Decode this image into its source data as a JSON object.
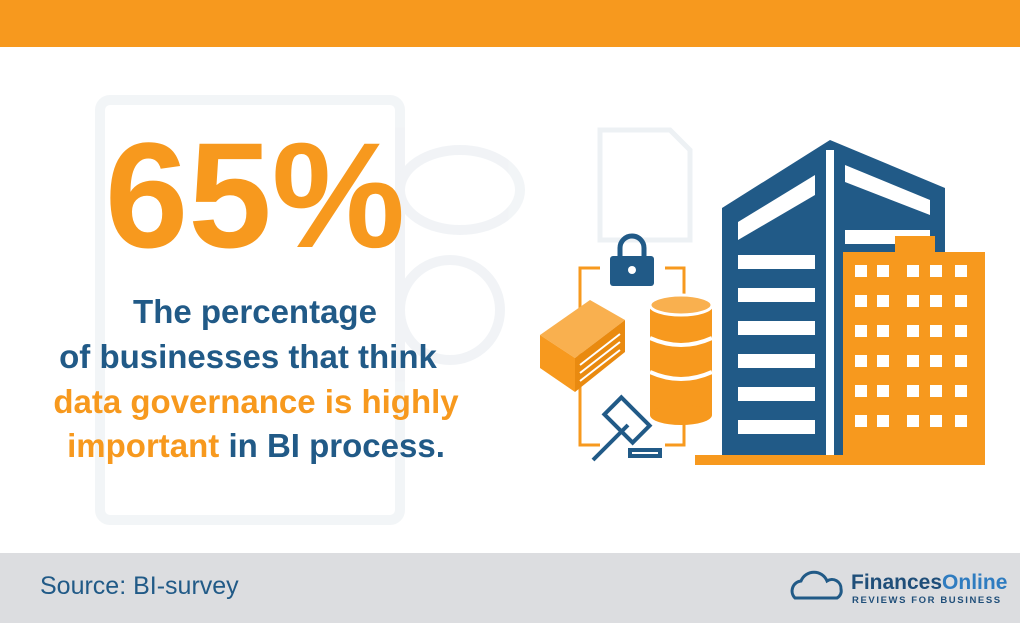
{
  "stat": "65%",
  "description": {
    "lines": [
      [
        "The percentage"
      ],
      [
        "of businesses that think"
      ],
      [
        "data governance is highly"
      ],
      [
        "important",
        " in BI process."
      ]
    ]
  },
  "footer": {
    "source": "Source: BI-survey",
    "logo": {
      "part1": "Finances",
      "part2": "Online",
      "tagline": "REVIEWS FOR BUSINESS"
    }
  }
}
